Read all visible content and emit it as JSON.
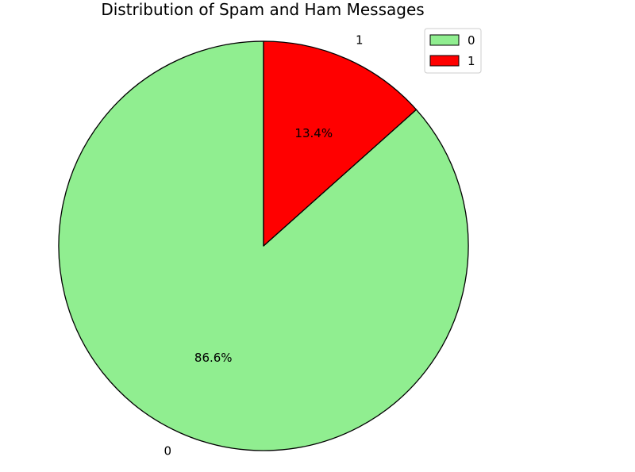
{
  "chart_data": {
    "type": "pie",
    "title": "Distribution of Spam and Ham Messages",
    "categories": [
      "0",
      "1"
    ],
    "values": [
      86.6,
      13.4
    ],
    "value_labels": [
      "86.6%",
      "13.4%"
    ],
    "colors": [
      "#90EE90",
      "#FF0000"
    ],
    "edge_color": "#000000",
    "start_angle_deg": 90,
    "counterclockwise": true,
    "legend": {
      "placement": "top-right",
      "entries": [
        "0",
        "1"
      ]
    }
  }
}
